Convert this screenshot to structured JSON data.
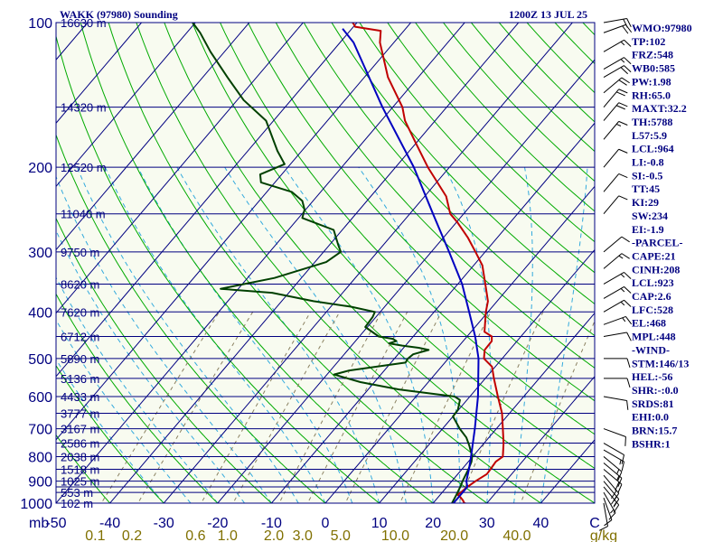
{
  "header": {
    "station": "WAKK (97980) Sounding",
    "time": "1200Z 13 JUL 25"
  },
  "colors": {
    "background": "#f8fbf0",
    "frame": "#000080",
    "isobar": "#000080",
    "isotherm": "#000080",
    "dry_adiabat": "#00aa00",
    "moist_adiabat": "#33aadd",
    "mixing_ratio": "#8a8060",
    "temperature": "#c00000",
    "dewpoint": "#004000",
    "parcel": "#0000c0",
    "wind_barb": "#000000"
  },
  "chart_data": {
    "type": "line",
    "diagram": "skew-T log-P",
    "title": "WAKK (97980) Sounding",
    "valid_time": "1200Z 13 JUL 25",
    "pressure_axis": {
      "unit": "mb",
      "range": [
        1000,
        100
      ],
      "log_scale": true,
      "labels": [
        "100",
        "200",
        "300",
        "400",
        "500",
        "600",
        "700",
        "800",
        "900",
        "1000"
      ]
    },
    "isobars": [
      100,
      150,
      200,
      250,
      300,
      350,
      400,
      450,
      500,
      550,
      600,
      650,
      700,
      750,
      800,
      850,
      900,
      925,
      950,
      1000
    ],
    "temperature_axis": {
      "unit": "C",
      "ticks": [
        -50,
        -40,
        -30,
        -20,
        -10,
        0,
        10,
        20,
        30,
        40,
        50
      ],
      "labels": [
        "-50",
        "-40",
        "-30",
        "-20",
        "-10",
        "0",
        "10",
        "20",
        "30",
        "40",
        "C"
      ]
    },
    "mixing_ratio_axis": {
      "unit": "g/kg",
      "values": [
        0.1,
        0.2,
        0.6,
        1.0,
        2.0,
        3.0,
        5.0,
        10.0,
        20.0,
        40.0
      ],
      "labels": [
        "0.1",
        "0.2",
        "0.6",
        "1.0",
        "2.0",
        "3.0",
        "5.0",
        "10.0",
        "20.0",
        "40.0",
        "g/kg"
      ]
    },
    "height_labels": [
      {
        "p": 100,
        "text": "16630 m"
      },
      {
        "p": 150,
        "text": "14320 m"
      },
      {
        "p": 200,
        "text": "12520 m"
      },
      {
        "p": 250,
        "text": "11040 m"
      },
      {
        "p": 300,
        "text": "9750 m"
      },
      {
        "p": 350,
        "text": "8620 m"
      },
      {
        "p": 400,
        "text": "7620 m"
      },
      {
        "p": 450,
        "text": "6712 m"
      },
      {
        "p": 500,
        "text": "5890 m"
      },
      {
        "p": 550,
        "text": "5136 m"
      },
      {
        "p": 600,
        "text": "4433 m"
      },
      {
        "p": 650,
        "text": "3777 m"
      },
      {
        "p": 700,
        "text": "3167 m"
      },
      {
        "p": 750,
        "text": "2586 m"
      },
      {
        "p": 800,
        "text": "2038 m"
      },
      {
        "p": 850,
        "text": "1518 m"
      },
      {
        "p": 900,
        "text": "1025 m"
      },
      {
        "p": 950,
        "text": "553 m"
      },
      {
        "p": 1000,
        "text": "102 m"
      }
    ],
    "series": [
      {
        "name": "Temperature",
        "color": "#c00000",
        "points": [
          [
            1008,
            27.2
          ],
          [
            1000,
            25.8
          ],
          [
            985,
            25
          ],
          [
            970,
            24
          ],
          [
            960,
            23.2
          ],
          [
            950,
            23.5
          ],
          [
            930,
            23.7
          ],
          [
            900,
            24.4
          ],
          [
            870,
            25.4
          ],
          [
            850,
            25.3
          ],
          [
            820,
            25.1
          ],
          [
            800,
            25.6
          ],
          [
            750,
            23.6
          ],
          [
            700,
            21.2
          ],
          [
            650,
            18.6
          ],
          [
            600,
            15.2
          ],
          [
            550,
            11.6
          ],
          [
            520,
            9.4
          ],
          [
            500,
            6.6
          ],
          [
            480,
            5.4
          ],
          [
            460,
            5.3
          ],
          [
            450,
            4.6
          ],
          [
            440,
            2.5
          ],
          [
            400,
            -0.4
          ],
          [
            380,
            -1.7
          ],
          [
            350,
            -4.9
          ],
          [
            320,
            -8.4
          ],
          [
            300,
            -11.8
          ],
          [
            280,
            -15.5
          ],
          [
            260,
            -19.9
          ],
          [
            250,
            -22.5
          ],
          [
            230,
            -26
          ],
          [
            210,
            -31.2
          ],
          [
            200,
            -34
          ],
          [
            180,
            -39.5
          ],
          [
            160,
            -45.6
          ],
          [
            150,
            -48.2
          ],
          [
            130,
            -55.6
          ],
          [
            110,
            -62.6
          ],
          [
            104,
            -64.3
          ],
          [
            102,
            -69.7
          ],
          [
            101,
            -70.2
          ],
          [
            100,
            -70.8
          ]
        ]
      },
      {
        "name": "Dewpoint",
        "color": "#004000",
        "points": [
          [
            1000,
            23.5
          ],
          [
            960,
            23
          ],
          [
            920,
            22.4
          ],
          [
            900,
            22
          ],
          [
            850,
            21.2
          ],
          [
            820,
            20.6
          ],
          [
            800,
            19.9
          ],
          [
            760,
            17.7
          ],
          [
            730,
            15.8
          ],
          [
            700,
            13.2
          ],
          [
            660,
            10
          ],
          [
            640,
            9.9
          ],
          [
            610,
            8.7
          ],
          [
            600,
            7.2
          ],
          [
            580,
            -4.3
          ],
          [
            560,
            -12.6
          ],
          [
            540,
            -18.7
          ],
          [
            530,
            -16.6
          ],
          [
            510,
            -7.3
          ],
          [
            500,
            -7.5
          ],
          [
            490,
            -7.2
          ],
          [
            480,
            -5
          ],
          [
            475,
            -7.2
          ],
          [
            470,
            -10.6
          ],
          [
            465,
            -13.4
          ],
          [
            460,
            -12.4
          ],
          [
            455,
            -13.4
          ],
          [
            450,
            -16.4
          ],
          [
            430,
            -20.4
          ],
          [
            410,
            -20.6
          ],
          [
            400,
            -21
          ],
          [
            390,
            -26.4
          ],
          [
            380,
            -34.1
          ],
          [
            365,
            -43.1
          ],
          [
            358,
            -53.3
          ],
          [
            340,
            -45
          ],
          [
            315,
            -37.9
          ],
          [
            300,
            -36.8
          ],
          [
            290,
            -38.4
          ],
          [
            270,
            -41.6
          ],
          [
            255,
            -49.3
          ],
          [
            245,
            -50.2
          ],
          [
            235,
            -52
          ],
          [
            225,
            -55.4
          ],
          [
            215,
            -62.6
          ],
          [
            207,
            -64
          ],
          [
            197,
            -61.1
          ],
          [
            185,
            -64.5
          ],
          [
            160,
            -71.4
          ],
          [
            145,
            -78.8
          ],
          [
            130,
            -85.4
          ],
          [
            115,
            -92.6
          ],
          [
            105,
            -97.5
          ],
          [
            100,
            -100.5
          ]
        ]
      },
      {
        "name": "Parcel",
        "color": "#0000c0",
        "points": [
          [
            1000,
            23.8
          ],
          [
            925,
            23.8
          ],
          [
            900,
            22.7
          ],
          [
            850,
            21.3
          ],
          [
            800,
            19.7
          ],
          [
            700,
            16
          ],
          [
            600,
            11.5
          ],
          [
            500,
            5.6
          ],
          [
            450,
            1.5
          ],
          [
            400,
            -3.5
          ],
          [
            350,
            -9.2
          ],
          [
            300,
            -16.7
          ],
          [
            250,
            -25.7
          ],
          [
            200,
            -36.6
          ],
          [
            150,
            -51.9
          ],
          [
            110,
            -67.5
          ],
          [
            103,
            -71.7
          ]
        ]
      }
    ],
    "wind_barbs": [
      {
        "p": 1000,
        "dir": 170,
        "spd": 10
      },
      {
        "p": 975,
        "dir": 160,
        "spd": 10
      },
      {
        "p": 950,
        "dir": 150,
        "spd": 15
      },
      {
        "p": 925,
        "dir": 140,
        "spd": 15
      },
      {
        "p": 900,
        "dir": 140,
        "spd": 20
      },
      {
        "p": 875,
        "dir": 140,
        "spd": 20
      },
      {
        "p": 850,
        "dir": 130,
        "spd": 20
      },
      {
        "p": 825,
        "dir": 130,
        "spd": 15
      },
      {
        "p": 800,
        "dir": 130,
        "spd": 15
      },
      {
        "p": 775,
        "dir": 120,
        "spd": 15
      },
      {
        "p": 750,
        "dir": 120,
        "spd": 10
      },
      {
        "p": 700,
        "dir": 110,
        "spd": 10
      },
      {
        "p": 600,
        "dir": 100,
        "spd": 10
      },
      {
        "p": 550,
        "dir": 90,
        "spd": 10
      },
      {
        "p": 500,
        "dir": 90,
        "spd": 10
      },
      {
        "p": 450,
        "dir": 80,
        "spd": 10
      },
      {
        "p": 425,
        "dir": 70,
        "spd": 15
      },
      {
        "p": 400,
        "dir": 60,
        "spd": 15
      },
      {
        "p": 375,
        "dir": 60,
        "spd": 15
      },
      {
        "p": 350,
        "dir": 60,
        "spd": 15
      },
      {
        "p": 325,
        "dir": 50,
        "spd": 15
      },
      {
        "p": 300,
        "dir": 50,
        "spd": 10
      },
      {
        "p": 250,
        "dir": 40,
        "spd": 10
      },
      {
        "p": 225,
        "dir": 40,
        "spd": 10
      },
      {
        "p": 200,
        "dir": 40,
        "spd": 10
      },
      {
        "p": 175,
        "dir": 40,
        "spd": 15
      },
      {
        "p": 160,
        "dir": 40,
        "spd": 20
      },
      {
        "p": 150,
        "dir": 40,
        "spd": 20
      },
      {
        "p": 140,
        "dir": 50,
        "spd": 20
      },
      {
        "p": 130,
        "dir": 60,
        "spd": 20
      },
      {
        "p": 125,
        "dir": 60,
        "spd": 15
      },
      {
        "p": 115,
        "dir": 60,
        "spd": 15
      },
      {
        "p": 105,
        "dir": 70,
        "spd": 20
      },
      {
        "p": 100,
        "dir": 80,
        "spd": 20
      }
    ],
    "grid": true,
    "legend": "none"
  },
  "indices": [
    "WMO:97980",
    "TP:102",
    "FRZ:548",
    "WB0:585",
    "PW:1.98",
    "RH:65.0",
    "MAXT:32.2",
    "TH:5788",
    "L57:5.9",
    "LCL:964",
    "LI:-0.8",
    "SI:-0.5",
    "TT:45",
    "KI:29",
    "SW:234",
    "EI:-1.9",
    "-PARCEL-",
    "CAPE:21",
    "CINH:208",
    "LCL:923",
    "CAP:2.6",
    "LFC:528",
    "EL:468",
    "MPL:448",
    "-WIND-",
    "STM:146/13",
    "HEL:-56",
    "SHR:-:0.0",
    "SRDS:81",
    "EHI:0.0",
    "BRN:15.7",
    "BSHR:1"
  ]
}
